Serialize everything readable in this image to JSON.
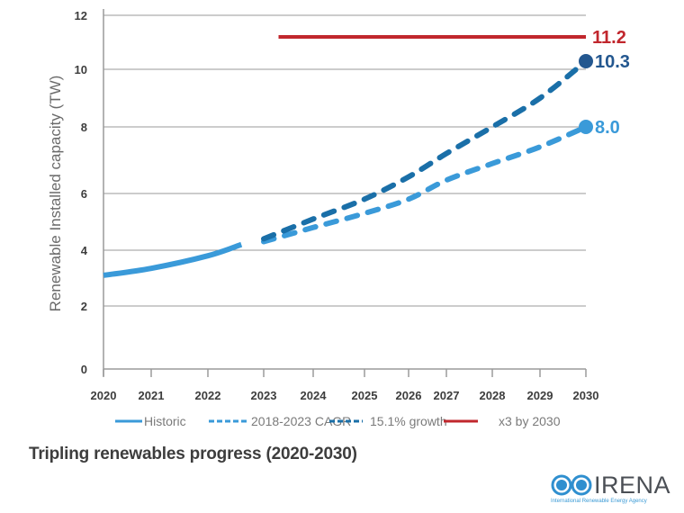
{
  "chart_data": {
    "type": "line",
    "title": "Tripling renewables progress (2020-2030)",
    "xlabel": "",
    "ylabel": "Renewable Installed capacity (TW)",
    "x_ticks": [
      "2020",
      "2021",
      "2022",
      "2023",
      "2024",
      "2025",
      "2026",
      "2027",
      "2028",
      "2029",
      "2030"
    ],
    "y_ticks": [
      "0",
      "2",
      "4",
      "6",
      "8",
      "10",
      "12"
    ],
    "ylim": [
      0,
      12
    ],
    "xlim": [
      2020,
      2030
    ],
    "grid": "horizontal",
    "legend_position": "bottom",
    "series": [
      {
        "name": "Historic",
        "style": "solid",
        "color": "#3a9ad9",
        "x": [
          2020,
          2021,
          2022,
          2022.6
        ],
        "y": [
          3.1,
          3.35,
          3.8,
          4.2
        ]
      },
      {
        "name": "2018-2023 CAGR",
        "style": "dashed",
        "color": "#3a9ad9",
        "x": [
          2023,
          2024,
          2025,
          2026,
          2027,
          2028,
          2029,
          2030
        ],
        "y": [
          4.3,
          4.8,
          5.3,
          5.8,
          6.4,
          6.9,
          7.4,
          8.0
        ],
        "end_label": "8.0"
      },
      {
        "name": "15.1% growth",
        "style": "dashed",
        "color": "#1a6fa8",
        "x": [
          2023,
          2024,
          2025,
          2026,
          2027,
          2028,
          2029,
          2030
        ],
        "y": [
          4.4,
          5.1,
          5.8,
          6.5,
          7.2,
          8.0,
          9.0,
          10.3
        ],
        "end_label": "10.3"
      },
      {
        "name": "x3 by 2030",
        "style": "solid",
        "color": "#c1272d",
        "x": [
          2023.3,
          2030
        ],
        "y": [
          11.2,
          11.2
        ],
        "end_label": "11.2"
      }
    ]
  },
  "logo": {
    "name": "IRENA",
    "subtitle": "International Renewable Energy Agency"
  }
}
